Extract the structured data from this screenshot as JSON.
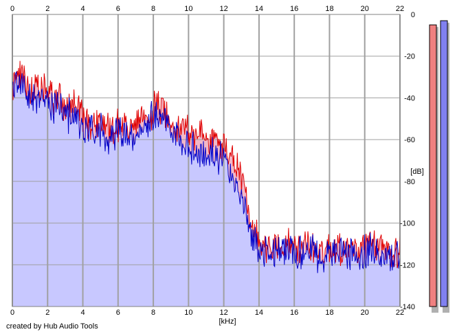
{
  "chart_data": {
    "type": "area",
    "title": "",
    "xlabel": "[kHz]",
    "ylabel": "[dB]",
    "xlim": [
      0,
      22
    ],
    "ylim": [
      -140,
      0
    ],
    "x_ticks": [
      "0",
      "2",
      "4",
      "6",
      "8",
      "10",
      "12",
      "14",
      "16",
      "18",
      "20",
      "22"
    ],
    "y_ticks": [
      "0",
      "-20",
      "-40",
      "-60",
      "-80",
      "-100",
      "-120",
      "-140"
    ],
    "grid": true,
    "credit": "created by Hub Audio Tools",
    "series": [
      {
        "color": "#e00000",
        "fill": "#f2b8c8",
        "x": [
          0,
          0.2,
          0.5,
          0.8,
          1.0,
          1.3,
          1.6,
          2.0,
          2.3,
          2.6,
          3.0,
          3.3,
          3.6,
          4.0,
          4.3,
          4.6,
          5.0,
          5.3,
          5.6,
          6.0,
          6.3,
          6.6,
          7.0,
          7.3,
          7.6,
          8.0,
          8.3,
          8.6,
          9.0,
          9.3,
          9.6,
          10.0,
          10.3,
          10.6,
          11.0,
          11.3,
          11.6,
          12.0,
          12.3,
          12.6,
          12.9,
          13.1,
          13.3,
          13.5,
          13.7,
          14.0,
          14.5,
          15.0,
          15.5,
          16.0,
          16.5,
          17.0,
          17.5,
          18.0,
          18.5,
          19.0,
          19.5,
          20.0,
          20.5,
          21.0,
          21.5,
          22.0
        ],
        "y": [
          -36,
          -28,
          -30,
          -34,
          -35,
          -36,
          -38,
          -36,
          -40,
          -39,
          -44,
          -45,
          -43,
          -49,
          -53,
          -51,
          -51,
          -53,
          -55,
          -52,
          -53,
          -55,
          -53,
          -52,
          -51,
          -45,
          -44,
          -47,
          -50,
          -53,
          -55,
          -54,
          -57,
          -58,
          -60,
          -59,
          -62,
          -63,
          -66,
          -71,
          -76,
          -80,
          -90,
          -103,
          -106,
          -109,
          -110,
          -111,
          -110,
          -111,
          -112,
          -111,
          -113,
          -112,
          -111,
          -112,
          -113,
          -112,
          -111,
          -112,
          -113,
          -113
        ]
      },
      {
        "color": "#0000c8",
        "fill": "#c8c8ff",
        "x": [
          0,
          0.2,
          0.5,
          0.8,
          1.0,
          1.3,
          1.6,
          2.0,
          2.3,
          2.6,
          3.0,
          3.3,
          3.6,
          4.0,
          4.3,
          4.6,
          5.0,
          5.3,
          5.6,
          6.0,
          6.3,
          6.6,
          7.0,
          7.3,
          7.6,
          8.0,
          8.3,
          8.6,
          9.0,
          9.3,
          9.6,
          10.0,
          10.3,
          10.6,
          11.0,
          11.3,
          11.6,
          12.0,
          12.3,
          12.6,
          12.9,
          13.1,
          13.3,
          13.5,
          13.7,
          14.0,
          14.5,
          15.0,
          15.5,
          16.0,
          16.5,
          17.0,
          17.5,
          18.0,
          18.5,
          19.0,
          19.5,
          20.0,
          20.5,
          21.0,
          21.5,
          22.0
        ],
        "y": [
          -38,
          -30,
          -32,
          -37,
          -38,
          -40,
          -41,
          -40,
          -44,
          -43,
          -47,
          -49,
          -48,
          -54,
          -58,
          -56,
          -55,
          -57,
          -58,
          -56,
          -57,
          -59,
          -57,
          -56,
          -53,
          -48,
          -47,
          -50,
          -54,
          -58,
          -61,
          -62,
          -66,
          -68,
          -67,
          -66,
          -68,
          -70,
          -74,
          -79,
          -83,
          -88,
          -94,
          -106,
          -109,
          -112,
          -113,
          -114,
          -113,
          -114,
          -115,
          -114,
          -116,
          -115,
          -114,
          -115,
          -116,
          -115,
          -114,
          -115,
          -116,
          -116
        ]
      }
    ],
    "level_meters": [
      {
        "color": "#f08080",
        "level_db": -5
      },
      {
        "color": "#8080f0",
        "level_db": -3
      }
    ]
  }
}
